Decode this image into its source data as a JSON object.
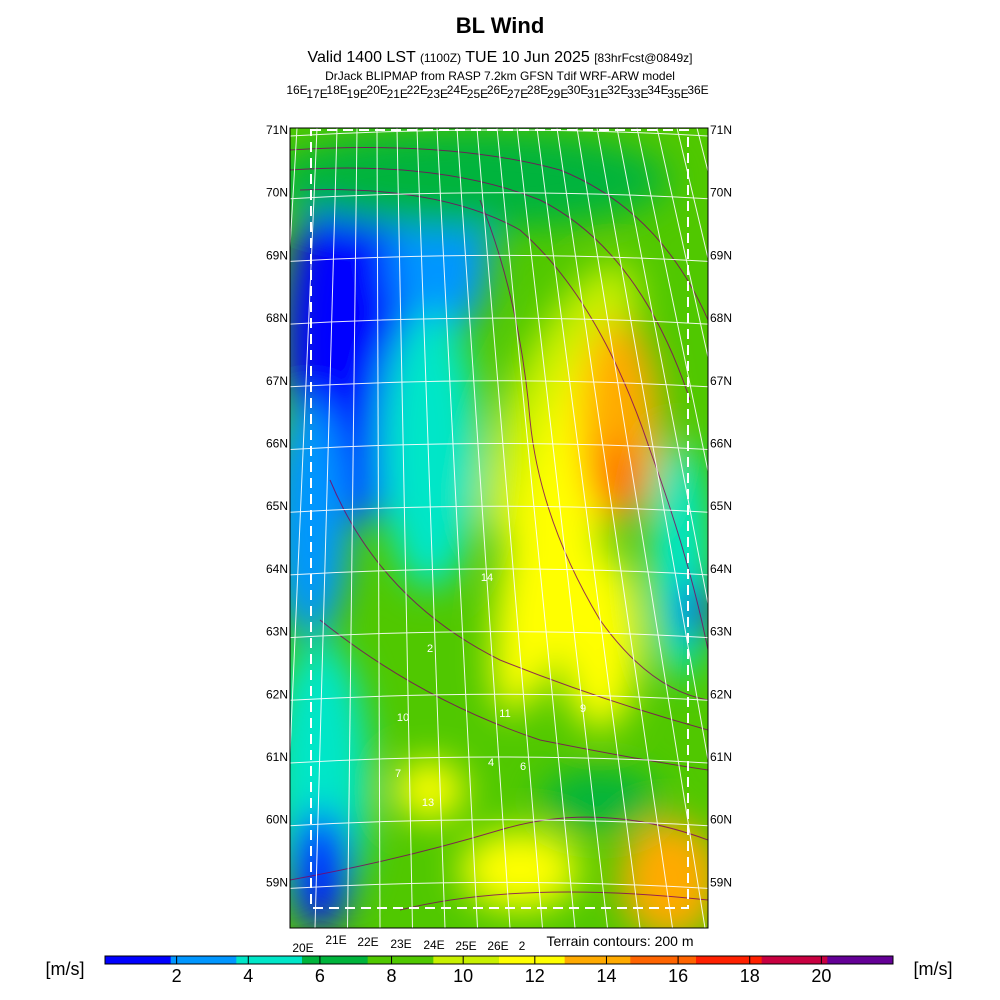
{
  "header": {
    "title": "BL Wind",
    "valid": "Valid 1400 LST",
    "utc": "(1100Z)",
    "date": "TUE 10 Jun 2025",
    "forecast": "[83hrFcst@0849z]",
    "subtitle": "DrJack BLIPMAP from RASP 7.2km GFSN Tdif WRF-ARW model"
  },
  "map": {
    "top_lon_labels": [
      "16E",
      "17E",
      "18E",
      "19E",
      "20E",
      "21E",
      "22E",
      "23E",
      "24E",
      "25E",
      "26E",
      "27E",
      "28E",
      "29E",
      "30E",
      "31E",
      "32E",
      "33E",
      "34E",
      "35E",
      "36E"
    ],
    "lat_labels": [
      "71N",
      "70N",
      "69N",
      "68N",
      "67N",
      "66N",
      "65N",
      "64N",
      "63N",
      "62N",
      "61N",
      "60N",
      "59N"
    ],
    "bottom_lon_labels": [
      "20E",
      "21E",
      "22E",
      "23E",
      "24E",
      "25E",
      "26E",
      "2"
    ],
    "contour_labels": [
      "14",
      "2",
      "10",
      "11",
      "7",
      "4",
      "6",
      "13",
      "9"
    ],
    "terrain_note": "Terrain contours: 200 m"
  },
  "colorbar": {
    "unit_left": "[m/s]",
    "unit_right": "[m/s]",
    "range": [
      0,
      22
    ],
    "ticks": [
      2,
      4,
      6,
      8,
      10,
      12,
      14,
      16,
      18,
      20
    ],
    "colors": [
      "#0000ff",
      "#0096ff",
      "#00e6c8",
      "#00b43c",
      "#50c800",
      "#c8f000",
      "#ffff00",
      "#ffaa00",
      "#ff6400",
      "#ff2000",
      "#c80040",
      "#640096"
    ]
  }
}
